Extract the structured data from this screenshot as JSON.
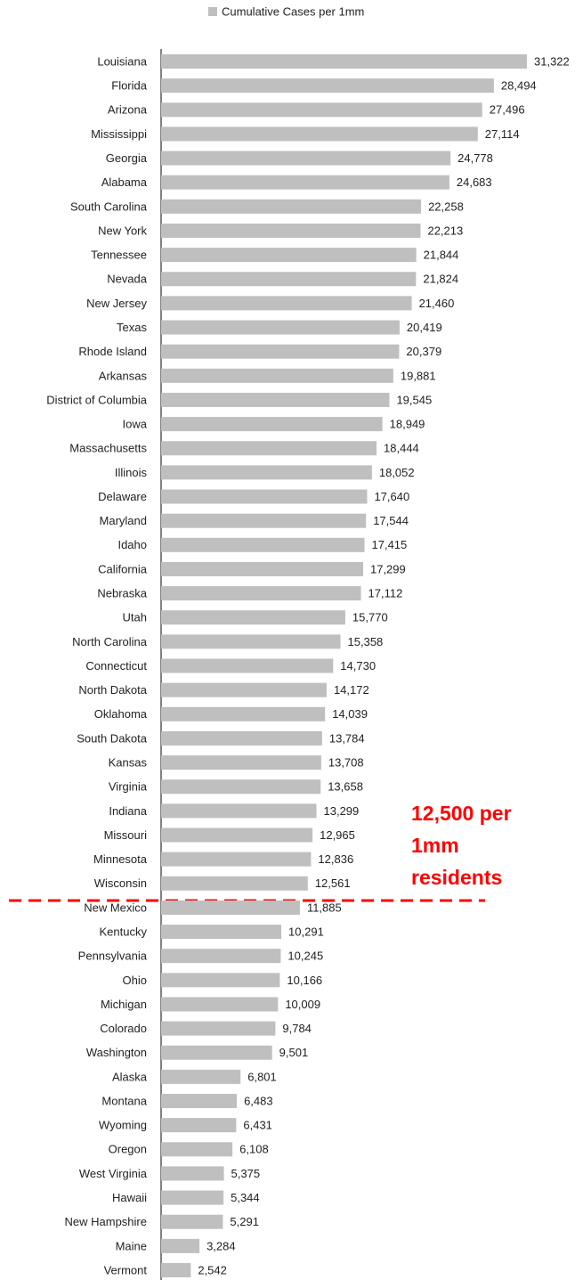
{
  "chart_data": {
    "type": "barh",
    "color": "#bfbfbf",
    "legend_label": "Cumulative Cases per 1mm",
    "annotation_lines": [
      "12,500 per",
      "1mm",
      "residents"
    ],
    "categories": [
      "Louisiana",
      "Florida",
      "Arizona",
      "Mississippi",
      "Georgia",
      "Alabama",
      "South Carolina",
      "New York",
      "Tennessee",
      "Nevada",
      "New Jersey",
      "Texas",
      "Rhode Island",
      "Arkansas",
      "District of Columbia",
      "Iowa",
      "Massachusetts",
      "Illinois",
      "Delaware",
      "Maryland",
      "Idaho",
      "California",
      "Nebraska",
      "Utah",
      "North Carolina",
      "Connecticut",
      "North Dakota",
      "Oklahoma",
      "South Dakota",
      "Kansas",
      "Virginia",
      "Indiana",
      "Missouri",
      "Minnesota",
      "Wisconsin",
      "New Mexico",
      "Kentucky",
      "Pennsylvania",
      "Ohio",
      "Michigan",
      "Colorado",
      "Washington",
      "Alaska",
      "Montana",
      "Wyoming",
      "Oregon",
      "West Virginia",
      "Hawaii",
      "New Hampshire",
      "Maine",
      "Vermont"
    ],
    "values": [
      31322,
      28494,
      27496,
      27114,
      24778,
      24683,
      22258,
      22213,
      21844,
      21824,
      21460,
      20419,
      20379,
      19881,
      19545,
      18949,
      18444,
      18052,
      17640,
      17544,
      17415,
      17299,
      17112,
      15770,
      15358,
      14730,
      14172,
      14039,
      13784,
      13708,
      13658,
      13299,
      12965,
      12836,
      12561,
      11885,
      10291,
      10245,
      10166,
      10009,
      9784,
      9501,
      6801,
      6483,
      6431,
      6108,
      5375,
      5344,
      5291,
      3284,
      2542
    ],
    "value_labels": [
      "31,322",
      "28,494",
      "27,496",
      "27,114",
      "24,778",
      "24,683",
      "22,258",
      "22,213",
      "21,844",
      "21,824",
      "21,460",
      "20,419",
      "20,379",
      "19,881",
      "19,545",
      "18,949",
      "18,444",
      "18,052",
      "17,640",
      "17,544",
      "17,415",
      "17,299",
      "17,112",
      "15,770",
      "15,358",
      "14,730",
      "14,172",
      "14,039",
      "13,784",
      "13,708",
      "13,658",
      "13,299",
      "12,965",
      "12,836",
      "12,561",
      "11,885",
      "10,291",
      "10,245",
      "10,166",
      "10,009",
      "9,784",
      "9,501",
      "6,801",
      "6,483",
      "6,431",
      "6,108",
      "5,375",
      "5,344",
      "5,291",
      "3,284",
      "2,542"
    ]
  }
}
